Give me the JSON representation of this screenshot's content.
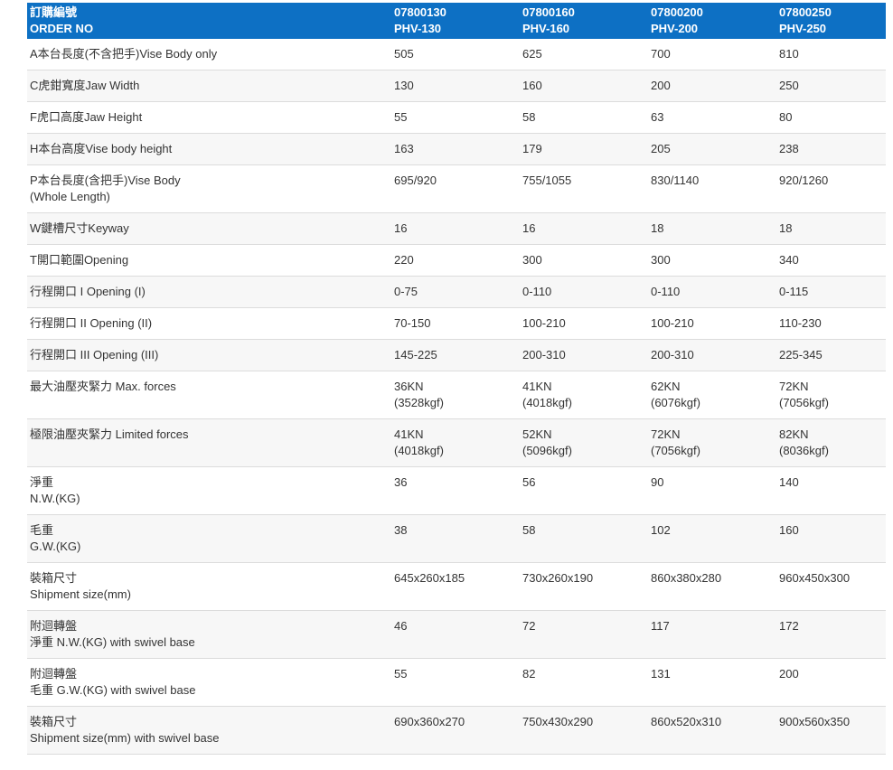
{
  "colors": {
    "header_bg": "#0d70c4",
    "header_text": "#ffffff",
    "body_text": "#333333",
    "row_border": "#dcdcdc",
    "row_alt_bg": "#f7f7f7",
    "page_bg": "#ffffff"
  },
  "table": {
    "header": {
      "label_zh": "訂購編號",
      "label_en": "ORDER NO",
      "columns": [
        {
          "order_no": "07800130",
          "model": "PHV-130"
        },
        {
          "order_no": "07800160",
          "model": "PHV-160"
        },
        {
          "order_no": "07800200",
          "model": "PHV-200"
        },
        {
          "order_no": "07800250",
          "model": "PHV-250"
        }
      ]
    },
    "rows": [
      {
        "label_lines": [
          "A本台長度(不含把手)Vise Body only"
        ],
        "values": [
          [
            "505"
          ],
          [
            "625"
          ],
          [
            "700"
          ],
          [
            "810"
          ]
        ]
      },
      {
        "label_lines": [
          "C虎鉗寬度Jaw Width"
        ],
        "values": [
          [
            "130"
          ],
          [
            "160"
          ],
          [
            "200"
          ],
          [
            "250"
          ]
        ]
      },
      {
        "label_lines": [
          "F虎口高度Jaw Height"
        ],
        "values": [
          [
            "55"
          ],
          [
            "58"
          ],
          [
            "63"
          ],
          [
            "80"
          ]
        ]
      },
      {
        "label_lines": [
          "H本台高度Vise body height"
        ],
        "values": [
          [
            "163"
          ],
          [
            "179"
          ],
          [
            "205"
          ],
          [
            "238"
          ]
        ]
      },
      {
        "label_lines": [
          "P本台長度(含把手)Vise Body",
          "(Whole Length)"
        ],
        "values": [
          [
            "695/920"
          ],
          [
            "755/1055"
          ],
          [
            "830/1140"
          ],
          [
            "920/1260"
          ]
        ]
      },
      {
        "label_lines": [
          "W鍵槽尺寸Keyway"
        ],
        "values": [
          [
            "16"
          ],
          [
            "16"
          ],
          [
            "18"
          ],
          [
            "18"
          ]
        ]
      },
      {
        "label_lines": [
          "T開口範圍Opening"
        ],
        "values": [
          [
            "220"
          ],
          [
            "300"
          ],
          [
            "300"
          ],
          [
            "340"
          ]
        ]
      },
      {
        "label_lines": [
          "行程開口 I Opening (I)"
        ],
        "values": [
          [
            "0-75"
          ],
          [
            "0-110"
          ],
          [
            "0-110"
          ],
          [
            "0-115"
          ]
        ]
      },
      {
        "label_lines": [
          "行程開口 II Opening (II)"
        ],
        "values": [
          [
            "70-150"
          ],
          [
            "100-210"
          ],
          [
            "100-210"
          ],
          [
            "110-230"
          ]
        ]
      },
      {
        "label_lines": [
          "行程開口 III Opening (III)"
        ],
        "values": [
          [
            "145-225"
          ],
          [
            "200-310"
          ],
          [
            "200-310"
          ],
          [
            "225-345"
          ]
        ]
      },
      {
        "label_lines": [
          "最大油壓夾緊力 Max. forces"
        ],
        "values": [
          [
            "36KN",
            "(3528kgf)"
          ],
          [
            "41KN",
            "(4018kgf)"
          ],
          [
            "62KN",
            "(6076kgf)"
          ],
          [
            "72KN",
            "(7056kgf)"
          ]
        ]
      },
      {
        "label_lines": [
          "極限油壓夾緊力 Limited forces"
        ],
        "values": [
          [
            "41KN",
            "(4018kgf)"
          ],
          [
            "52KN",
            "(5096kgf)"
          ],
          [
            "72KN",
            "(7056kgf)"
          ],
          [
            "82KN",
            "(8036kgf)"
          ]
        ]
      },
      {
        "label_lines": [
          "淨重",
          "N.W.(KG)"
        ],
        "values": [
          [
            "36"
          ],
          [
            "56"
          ],
          [
            "90"
          ],
          [
            "140"
          ]
        ]
      },
      {
        "label_lines": [
          "毛重",
          "G.W.(KG)"
        ],
        "values": [
          [
            "38"
          ],
          [
            "58"
          ],
          [
            "102"
          ],
          [
            "160"
          ]
        ]
      },
      {
        "label_lines": [
          "裝箱尺寸",
          "Shipment size(mm)"
        ],
        "values": [
          [
            "645x260x185"
          ],
          [
            "730x260x190"
          ],
          [
            "860x380x280"
          ],
          [
            "960x450x300"
          ]
        ]
      },
      {
        "label_lines": [
          "附迴轉盤",
          "淨重 N.W.(KG) with swivel base"
        ],
        "values": [
          [
            "46"
          ],
          [
            "72"
          ],
          [
            "117"
          ],
          [
            "172"
          ]
        ]
      },
      {
        "label_lines": [
          "附迴轉盤",
          "毛重 G.W.(KG) with swivel base"
        ],
        "values": [
          [
            "55"
          ],
          [
            "82"
          ],
          [
            "131"
          ],
          [
            "200"
          ]
        ]
      },
      {
        "label_lines": [
          "裝箱尺寸",
          "Shipment size(mm) with swivel base"
        ],
        "values": [
          [
            "690x360x270"
          ],
          [
            "750x430x290"
          ],
          [
            "860x520x310"
          ],
          [
            "900x560x350"
          ]
        ]
      }
    ]
  }
}
